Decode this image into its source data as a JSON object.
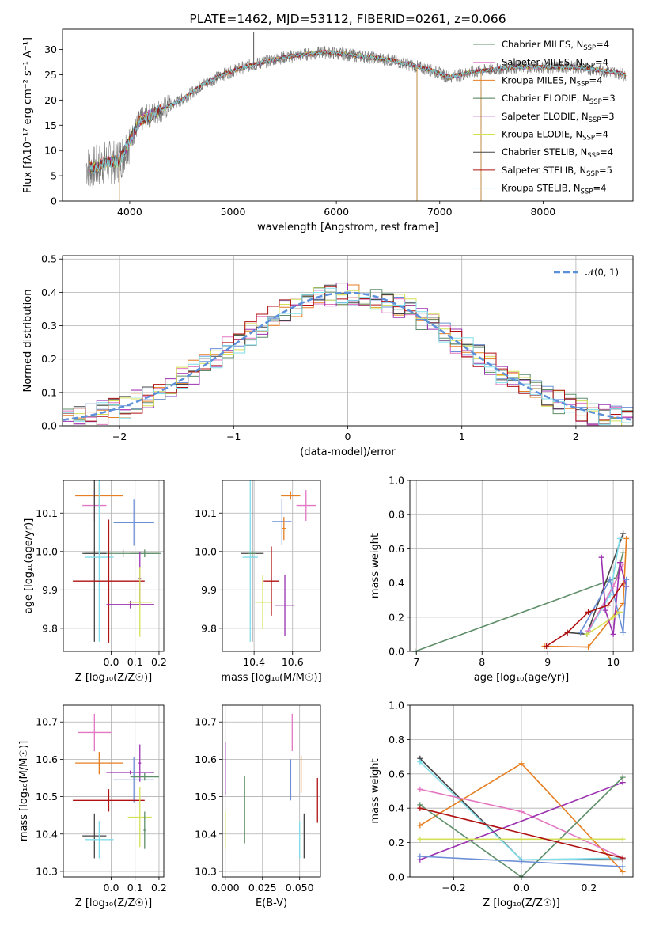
{
  "chart_data": [
    {
      "id": "spectrum",
      "type": "line",
      "title": "PLATE=1462, MJD=53112, FIBERID=0261, z=0.066",
      "xlabel": "wavelength [Angstrom, rest frame]",
      "ylabel": "Flux [fλ10⁻¹⁷ erg cm⁻² s⁻¹ A⁻¹]",
      "xlim": [
        3350,
        8870
      ],
      "ylim": [
        0,
        34
      ],
      "xticks": [
        4000,
        5000,
        6000,
        7000,
        8000
      ],
      "yticks": [
        0,
        5,
        10,
        15,
        20,
        25,
        30
      ],
      "legend_position": "right",
      "continuum": {
        "x": [
          3580,
          3650,
          3750,
          3900,
          4000,
          4100,
          4300,
          4500,
          4700,
          4900,
          5100,
          5300,
          5500,
          5700,
          5900,
          6100,
          6300,
          6500,
          6700,
          6900,
          7100,
          7300,
          7500,
          7700,
          7900,
          8100,
          8300,
          8500,
          8700,
          8800
        ],
        "y": [
          7,
          6.5,
          7.5,
          8,
          12,
          16,
          18,
          20,
          23,
          25,
          26.5,
          27.5,
          28.5,
          29,
          29.5,
          29,
          28.5,
          28,
          27,
          26,
          24.5,
          25.5,
          26,
          26.5,
          26.5,
          26.5,
          26.5,
          26,
          25.5,
          25
        ]
      },
      "spikes": [
        {
          "x": 5200,
          "y": 33.5
        },
        {
          "x": 6780,
          "y": 0
        },
        {
          "x": 7400,
          "y": 0
        },
        {
          "x": 3900,
          "y": 0
        }
      ],
      "series": [
        {
          "name": "Chabrier MILES, N",
          "sub": "SSP",
          "suffix": "=4",
          "color": "#5f8f6a"
        },
        {
          "name": "Salpeter MILES, N",
          "sub": "SSP",
          "suffix": "=4",
          "color": "#e377c2"
        },
        {
          "name": "Kroupa MILES, N",
          "sub": "SSP",
          "suffix": "=4",
          "color": "#e67e22"
        },
        {
          "name": "Chabrier ELODIE, N",
          "sub": "SSP",
          "suffix": "=3",
          "color": "#4a7a52"
        },
        {
          "name": "Salpeter ELODIE, N",
          "sub": "SSP",
          "suffix": "=3",
          "color": "#9b30b0"
        },
        {
          "name": "Kroupa ELODIE, N",
          "sub": "SSP",
          "suffix": "=4",
          "color": "#d4e157"
        },
        {
          "name": "Chabrier STELIB, N",
          "sub": "SSP",
          "suffix": "=4",
          "color": "#444444"
        },
        {
          "name": "Salpeter STELIB, N",
          "sub": "SSP",
          "suffix": "=5",
          "color": "#b01010"
        },
        {
          "name": "Kroupa STELIB, N",
          "sub": "SSP",
          "suffix": "=4",
          "color": "#80deea"
        }
      ]
    },
    {
      "id": "residuals",
      "type": "histogram",
      "xlabel": "(data-model)/error",
      "ylabel": "Normed distribution",
      "xlim": [
        -2.5,
        2.5
      ],
      "ylim": [
        0,
        0.51
      ],
      "xticks": [
        -2,
        -1,
        0,
        1,
        2
      ],
      "yticks": [
        0.0,
        0.1,
        0.2,
        0.3,
        0.4,
        0.5
      ],
      "grid": true,
      "legend_position": "top-right",
      "reference": {
        "name": "𝒩(0, 1)",
        "mean": 0,
        "sigma": 1,
        "color": "#5b8fd9"
      },
      "bin_width": 0.1,
      "histogram_series_colors": [
        "#6b8fd6",
        "#e377c2",
        "#e67e22",
        "#5f8f6a",
        "#9b30b0",
        "#d4e157",
        "#444444",
        "#b01010",
        "#80deea"
      ]
    },
    {
      "id": "age-vs-Z",
      "type": "errorbar",
      "xlabel": "Z [log₁₀(Z/Z☉)]",
      "ylabel": "age  [log₁₀(age/yr)]",
      "xlim": [
        -0.2,
        0.22
      ],
      "ylim": [
        9.74,
        10.185
      ],
      "xticks": [
        0.0,
        0.1,
        0.2
      ],
      "yticks": [
        9.8,
        9.9,
        10.0,
        10.1
      ],
      "grid": true,
      "points": [
        {
          "x": -0.05,
          "y": 10.145,
          "xerr": 0.1,
          "yerr": 0.03,
          "color": "#e67e22"
        },
        {
          "x": -0.07,
          "y": 10.12,
          "xerr": 0.05,
          "yerr": 0.04,
          "color": "#e377c2"
        },
        {
          "x": 0.095,
          "y": 10.075,
          "xerr": 0.085,
          "yerr": 0.06,
          "color": "#6b8fd6"
        },
        {
          "x": 0.05,
          "y": 9.995,
          "xerr": 0.16,
          "yerr": 0.01,
          "color": "#5f8f6a"
        },
        {
          "x": 0.14,
          "y": 9.995,
          "xerr": 0.06,
          "yerr": 0.01,
          "color": "#5f8f6a"
        },
        {
          "x": -0.07,
          "y": 9.995,
          "xerr": 0.05,
          "yerr": 0.23,
          "color": "#444444"
        },
        {
          "x": -0.05,
          "y": 9.985,
          "xerr": 0.06,
          "yerr": 0.22,
          "color": "#80deea"
        },
        {
          "x": -0.01,
          "y": 9.923,
          "xerr": 0.15,
          "yerr": 0.16,
          "color": "#b01010"
        },
        {
          "x": 0.12,
          "y": 9.93,
          "xerr": 0.005,
          "yerr": 0.07,
          "color": "#9b30b0"
        },
        {
          "x": 0.08,
          "y": 9.862,
          "xerr": 0.1,
          "yerr": 0.01,
          "color": "#9b30b0"
        },
        {
          "x": 0.12,
          "y": 9.868,
          "xerr": 0.05,
          "yerr": 0.09,
          "color": "#d4e157"
        }
      ]
    },
    {
      "id": "age-vs-mass",
      "type": "errorbar",
      "xlabel": "mass [log₁₀(M/M☉)]",
      "ylabel": "",
      "xlim": [
        10.235,
        10.745
      ],
      "ylim": [
        9.74,
        10.185
      ],
      "xticks": [
        10.4,
        10.6
      ],
      "yticks": [
        9.8,
        9.9,
        10.0,
        10.1
      ],
      "grid": true,
      "points": [
        {
          "x": 10.59,
          "y": 10.145,
          "xerr": 0.05,
          "yerr": 0.01,
          "color": "#e67e22"
        },
        {
          "x": 10.67,
          "y": 10.12,
          "xerr": 0.05,
          "yerr": 0.04,
          "color": "#e377c2"
        },
        {
          "x": 10.545,
          "y": 10.078,
          "xerr": 0.05,
          "yerr": 0.06,
          "color": "#6b8fd6"
        },
        {
          "x": 10.555,
          "y": 10.06,
          "xerr": 0.01,
          "yerr": 0.03,
          "color": "#e67e22"
        },
        {
          "x": 10.39,
          "y": 9.995,
          "xerr": 0.06,
          "yerr": 0.23,
          "color": "#444444"
        },
        {
          "x": 10.38,
          "y": 9.985,
          "xerr": 0.04,
          "yerr": 0.22,
          "color": "#80deea"
        },
        {
          "x": 10.49,
          "y": 9.923,
          "xerr": 0.04,
          "yerr": 0.09,
          "color": "#b01010"
        },
        {
          "x": 10.56,
          "y": 9.86,
          "xerr": 0.05,
          "yerr": 0.08,
          "color": "#9b30b0"
        },
        {
          "x": 10.445,
          "y": 9.868,
          "xerr": 0.04,
          "yerr": 0.07,
          "color": "#d4e157"
        },
        {
          "x": 10.39,
          "y": 9.995,
          "xerr": 0.02,
          "yerr": 0.01,
          "color": "#5f8f6a"
        }
      ]
    },
    {
      "id": "mass-weight-vs-age",
      "type": "line",
      "xlabel": "age  [log₁₀(age/yr)]",
      "ylabel": "mass weight",
      "xlim": [
        6.9,
        10.3
      ],
      "ylim": [
        0,
        1
      ],
      "xticks": [
        7,
        8,
        9,
        10
      ],
      "yticks": [
        0.0,
        0.2,
        0.4,
        0.6,
        0.8,
        1.0
      ],
      "grid": true,
      "series": [
        {
          "color": "#5f8f6a",
          "x": [
            6.98,
            10.05,
            10.15
          ],
          "y": [
            0.0,
            0.43,
            0.58
          ]
        },
        {
          "color": "#444444",
          "x": [
            9.3,
            9.6,
            10.15
          ],
          "y": [
            0.11,
            0.1,
            0.69
          ]
        },
        {
          "color": "#80deea",
          "x": [
            9.6,
            9.95,
            10.1
          ],
          "y": [
            0.1,
            0.33,
            0.66
          ]
        },
        {
          "color": "#e67e22",
          "x": [
            8.95,
            9.62,
            10.15,
            10.2
          ],
          "y": [
            0.03,
            0.025,
            0.28,
            0.66
          ]
        },
        {
          "color": "#e377c2",
          "x": [
            9.62,
            10.0,
            10.15
          ],
          "y": [
            0.12,
            0.38,
            0.51
          ]
        },
        {
          "color": "#9b30b0",
          "x": [
            9.82,
            9.88,
            10.0,
            10.1,
            10.2
          ],
          "y": [
            0.55,
            0.24,
            0.1,
            0.52,
            0.38
          ]
        },
        {
          "color": "#6b8fd6",
          "x": [
            9.5,
            9.95,
            10.15,
            10.2
          ],
          "y": [
            0.11,
            0.42,
            0.11,
            0.42
          ]
        },
        {
          "color": "#d4e157",
          "x": [
            9.6,
            10.0,
            10.1
          ],
          "y": [
            0.1,
            0.2,
            0.23
          ]
        },
        {
          "color": "#b01010",
          "x": [
            8.98,
            9.3,
            9.62,
            9.92,
            10.15
          ],
          "y": [
            0.03,
            0.11,
            0.23,
            0.27,
            0.4
          ]
        }
      ]
    },
    {
      "id": "mass-vs-Z",
      "type": "errorbar",
      "xlabel": "Z [log₁₀(Z/Z☉)]",
      "ylabel": "mass [log₁₀(M/M☉)]",
      "xlim": [
        -0.2,
        0.22
      ],
      "ylim": [
        10.285,
        10.745
      ],
      "xticks": [
        0.0,
        0.1,
        0.2
      ],
      "yticks": [
        10.3,
        10.4,
        10.5,
        10.6,
        10.7
      ],
      "grid": true,
      "points": [
        {
          "x": -0.07,
          "y": 10.672,
          "xerr": 0.07,
          "yerr": 0.05,
          "color": "#e377c2"
        },
        {
          "x": -0.05,
          "y": 10.59,
          "xerr": 0.1,
          "yerr": 0.03,
          "color": "#e67e22"
        },
        {
          "x": 0.12,
          "y": 10.59,
          "xerr": 0.005,
          "yerr": 0.05,
          "color": "#9b30b0"
        },
        {
          "x": 0.08,
          "y": 10.565,
          "xerr": 0.1,
          "yerr": 0.005,
          "color": "#9b30b0"
        },
        {
          "x": 0.095,
          "y": 10.545,
          "xerr": 0.085,
          "yerr": 0.06,
          "color": "#6b8fd6"
        },
        {
          "x": 0.14,
          "y": 10.553,
          "xerr": 0.06,
          "yerr": 0.01,
          "color": "#5f8f6a"
        },
        {
          "x": -0.01,
          "y": 10.49,
          "xerr": 0.15,
          "yerr": 0.03,
          "color": "#b01010"
        },
        {
          "x": 0.12,
          "y": 10.445,
          "xerr": 0.05,
          "yerr": 0.08,
          "color": "#d4e157"
        },
        {
          "x": 0.14,
          "y": 10.41,
          "xerr": 0.005,
          "yerr": 0.05,
          "color": "#5f8f6a"
        },
        {
          "x": -0.07,
          "y": 10.395,
          "xerr": 0.05,
          "yerr": 0.06,
          "color": "#444444"
        },
        {
          "x": -0.05,
          "y": 10.385,
          "xerr": 0.06,
          "yerr": 0.05,
          "color": "#80deea"
        }
      ]
    },
    {
      "id": "mass-vs-EBV",
      "type": "errorbar",
      "xlabel": "E(B-V)",
      "ylabel": "",
      "xlim": [
        -0.002,
        0.064
      ],
      "ylim": [
        10.285,
        10.745
      ],
      "xticks": [
        0.0,
        0.025,
        0.05
      ],
      "xtick_labels": [
        "0.000",
        "0.025",
        "0.050"
      ],
      "yticks": [
        10.3,
        10.4,
        10.5,
        10.6,
        10.7
      ],
      "grid": true,
      "points": [
        {
          "x": 0.0,
          "y": 10.575,
          "xerr": 0,
          "yerr": 0.07,
          "color": "#9b30b0"
        },
        {
          "x": 0.0,
          "y": 10.41,
          "xerr": 0,
          "yerr": 0.05,
          "color": "#d4e157"
        },
        {
          "x": 0.013,
          "y": 10.465,
          "xerr": 0,
          "yerr": 0.09,
          "color": "#5f8f6a"
        },
        {
          "x": 0.045,
          "y": 10.672,
          "xerr": 0,
          "yerr": 0.05,
          "color": "#e377c2"
        },
        {
          "x": 0.044,
          "y": 10.545,
          "xerr": 0,
          "yerr": 0.055,
          "color": "#6b8fd6"
        },
        {
          "x": 0.051,
          "y": 10.56,
          "xerr": 0,
          "yerr": 0.05,
          "color": "#e67e22"
        },
        {
          "x": 0.05,
          "y": 10.385,
          "xerr": 0,
          "yerr": 0.05,
          "color": "#80deea"
        },
        {
          "x": 0.053,
          "y": 10.395,
          "xerr": 0,
          "yerr": 0.06,
          "color": "#444444"
        },
        {
          "x": 0.062,
          "y": 10.49,
          "xerr": 0,
          "yerr": 0.06,
          "color": "#b01010"
        }
      ]
    },
    {
      "id": "mass-weight-vs-Z",
      "type": "line",
      "xlabel": "Z [log₁₀(Z/Z☉)]",
      "ylabel": "mass weight",
      "xlim": [
        -0.33,
        0.33
      ],
      "ylim": [
        0,
        1
      ],
      "xticks": [
        -0.2,
        0.0,
        0.2
      ],
      "yticks": [
        0.0,
        0.2,
        0.4,
        0.6,
        0.8,
        1.0
      ],
      "grid": true,
      "series": [
        {
          "color": "#444444",
          "x": [
            -0.3,
            0.0,
            0.3
          ],
          "y": [
            0.69,
            0.1,
            0.1
          ]
        },
        {
          "color": "#80deea",
          "x": [
            -0.3,
            0.0,
            0.3
          ],
          "y": [
            0.67,
            0.1,
            0.11
          ]
        },
        {
          "color": "#e67e22",
          "x": [
            -0.3,
            0.0,
            0.3
          ],
          "y": [
            0.3,
            0.66,
            0.03
          ]
        },
        {
          "color": "#e377c2",
          "x": [
            -0.3,
            0.0,
            0.3
          ],
          "y": [
            0.51,
            0.38,
            0.11
          ]
        },
        {
          "color": "#9b30b0",
          "x": [
            -0.3,
            0.3
          ],
          "y": [
            0.1,
            0.55
          ]
        },
        {
          "color": "#5f8f6a",
          "x": [
            -0.3,
            0.0,
            0.3
          ],
          "y": [
            0.42,
            0.0,
            0.58
          ]
        },
        {
          "color": "#6b8fd6",
          "x": [
            -0.3,
            0.0,
            0.3
          ],
          "y": [
            0.12,
            0.09,
            0.06
          ]
        },
        {
          "color": "#d4e157",
          "x": [
            -0.3,
            0.0,
            0.3
          ],
          "y": [
            0.22,
            0.22,
            0.22
          ]
        },
        {
          "color": "#b01010",
          "x": [
            -0.3,
            0.3
          ],
          "y": [
            0.4,
            0.11
          ]
        }
      ]
    }
  ]
}
